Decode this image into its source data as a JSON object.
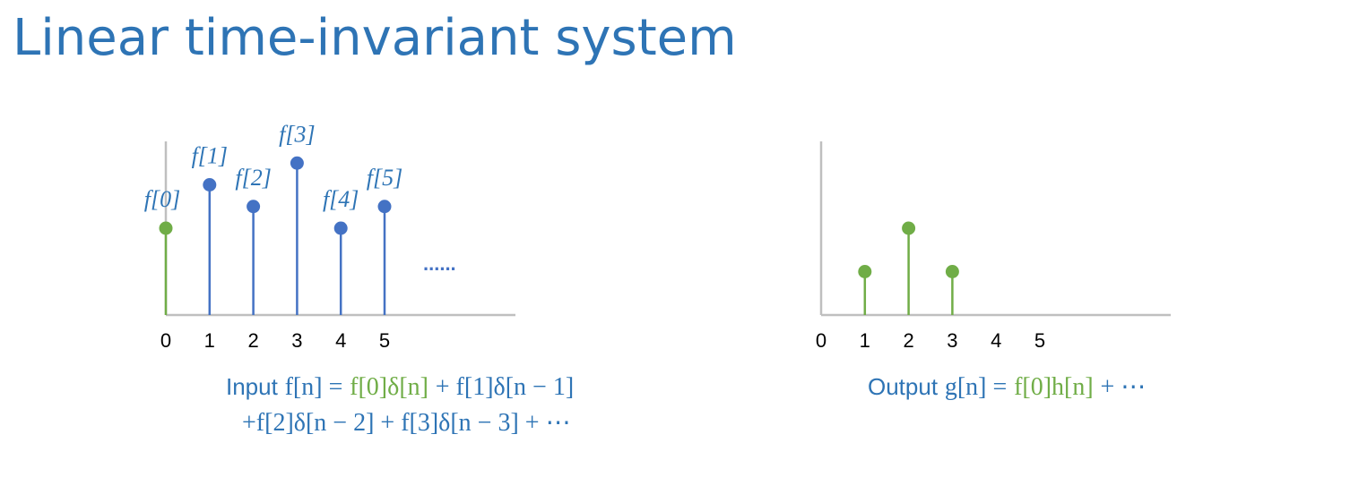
{
  "title": "Linear time-invariant system",
  "colors": {
    "title": "#2e74b5",
    "stem_blue": "#4472c4",
    "stem_green": "#70ad47",
    "axis": "#bfbfbf",
    "text_blue": "#2e74b5",
    "text_green": "#70ad47"
  },
  "chart_data": [
    {
      "type": "stem",
      "name": "input",
      "x": [
        0,
        1,
        2,
        3,
        4,
        5
      ],
      "values": [
        2,
        3,
        2.5,
        3.5,
        2,
        2.5
      ],
      "highlight_index": 0,
      "stem_labels": [
        "f[0]",
        "f[1]",
        "f[2]",
        "f[3]",
        "f[4]",
        "f[5]"
      ],
      "tick_labels": [
        "0",
        "1",
        "2",
        "3",
        "4",
        "5"
      ],
      "continuation": "......",
      "xlim": [
        0,
        8
      ],
      "ylim": [
        0,
        4
      ],
      "grid": false
    },
    {
      "type": "stem",
      "name": "output",
      "x": [
        1,
        2,
        3
      ],
      "values": [
        1,
        2,
        1
      ],
      "tick_labels": [
        "0",
        "1",
        "2",
        "3",
        "4",
        "5"
      ],
      "xlim": [
        0,
        8
      ],
      "ylim": [
        0,
        4
      ],
      "grid": false
    }
  ],
  "equations": {
    "input": {
      "word": "Input",
      "lhs": "f[n] =",
      "first_term": "f[0]δ[n]",
      "line1_rest": "+ f[1]δ[n − 1]",
      "line2": "+f[2]δ[n − 2] + f[3]δ[n − 3] + ⋯"
    },
    "output": {
      "word": "Output",
      "lhs": "g[n] =",
      "first_term": "f[0]h[n]",
      "rest": "+ ⋯"
    }
  }
}
